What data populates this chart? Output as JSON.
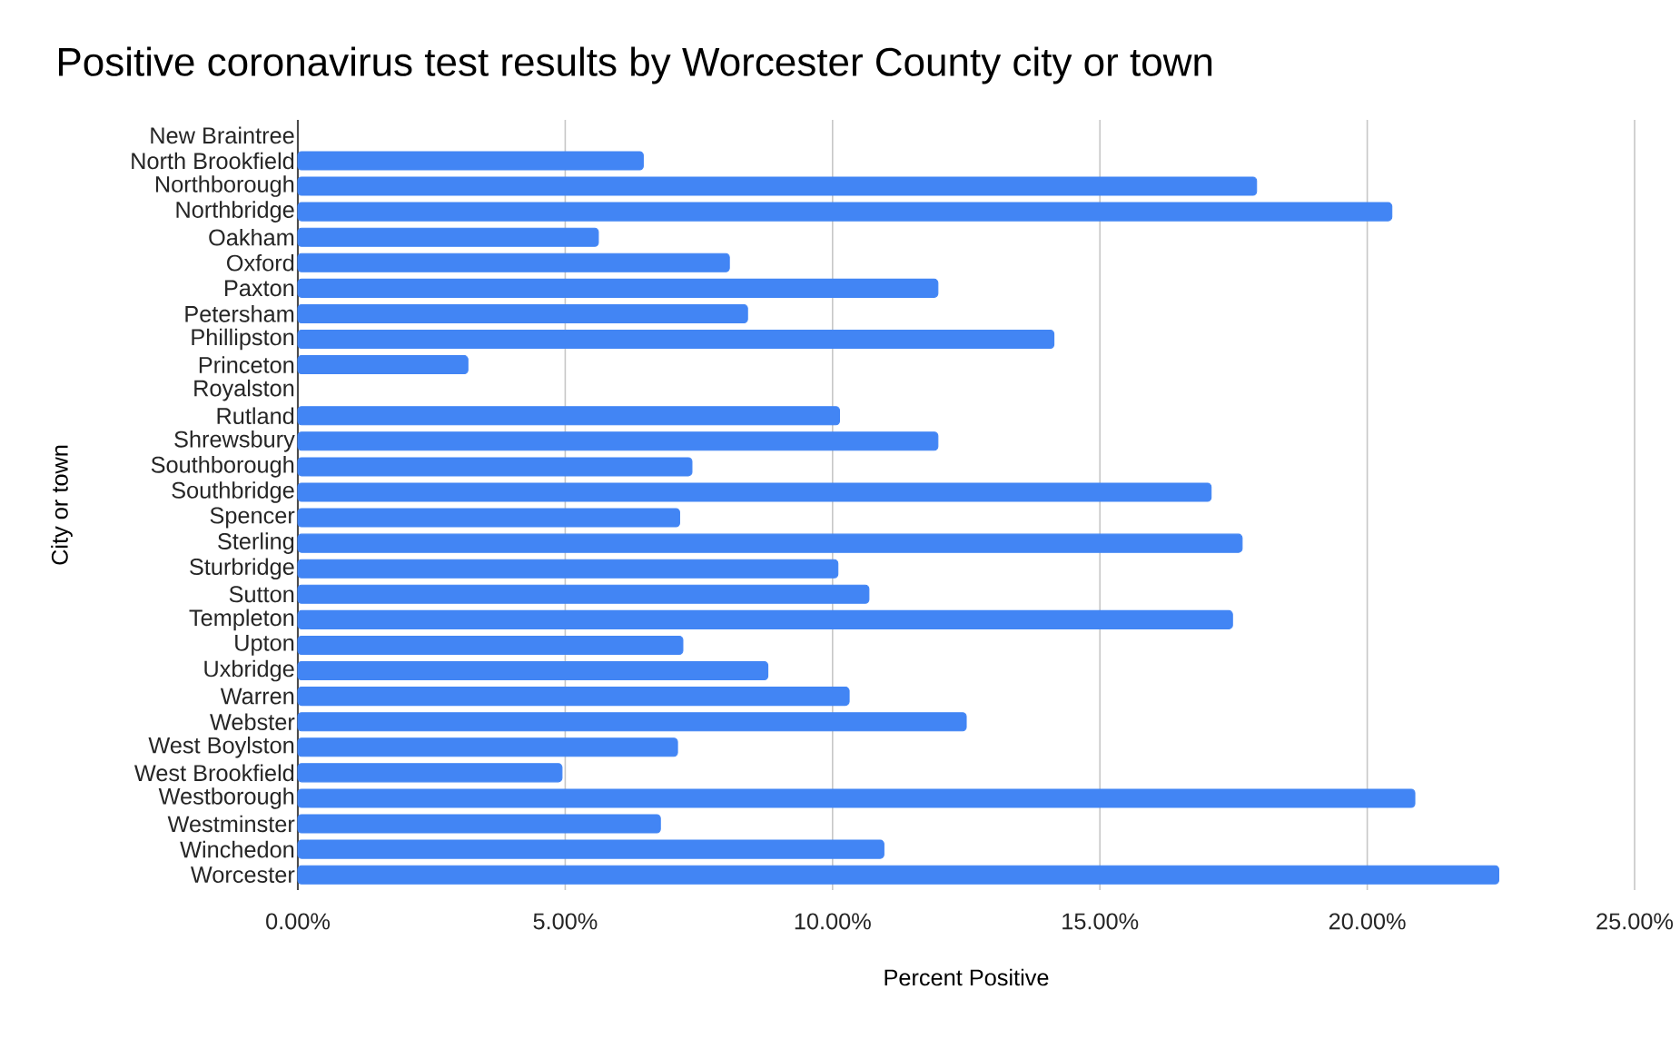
{
  "chart_data": {
    "type": "bar",
    "orientation": "horizontal",
    "title": "Positive coronavirus test results by Worcester County city or town",
    "xlabel": "Percent Positive",
    "ylabel": "City or town",
    "categories": [
      "New Braintree",
      "North Brookfield",
      "Northborough",
      "Northbridge",
      "Oakham",
      "Oxford",
      "Paxton",
      "Petersham",
      "Phillipston",
      "Princeton",
      "Royalston",
      "Rutland",
      "Shrewsbury",
      "Southborough",
      "Southbridge",
      "Spencer",
      "Sterling",
      "Sturbridge",
      "Sutton",
      "Templeton",
      "Upton",
      "Uxbridge",
      "Warren",
      "Webster",
      "West Boylston",
      "West Brookfield",
      "Westborough",
      "Westminster",
      "Winchedon",
      "Worcester"
    ],
    "values": [
      null,
      6.46,
      17.93,
      20.46,
      5.62,
      8.07,
      11.97,
      8.41,
      14.14,
      3.18,
      null,
      10.13,
      11.97,
      7.37,
      17.08,
      7.14,
      17.66,
      10.1,
      10.68,
      17.48,
      7.2,
      8.79,
      10.31,
      12.5,
      7.1,
      4.94,
      20.89,
      6.78,
      10.96,
      22.46
    ],
    "color": "#4285f4",
    "xlim": [
      0,
      25
    ],
    "xticks": [
      {
        "value": 0,
        "label": "0.00%"
      },
      {
        "value": 5,
        "label": "5.00%"
      },
      {
        "value": 10,
        "label": "10.00%"
      },
      {
        "value": 15,
        "label": "15.00%"
      },
      {
        "value": 20,
        "label": "20.00%"
      },
      {
        "value": 25,
        "label": "25.00%"
      }
    ],
    "grid": "x"
  }
}
